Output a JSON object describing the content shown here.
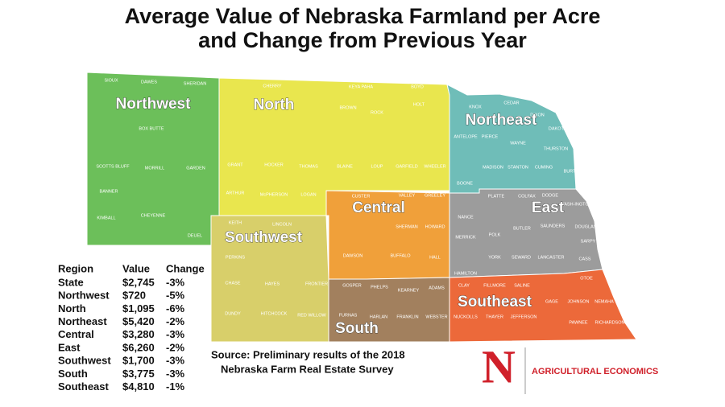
{
  "title": [
    "Average Value of Nebraska Farmland per Acre",
    "and Change from Previous Year"
  ],
  "map": {
    "regions": [
      {
        "name": "Northwest",
        "color": "#6cbf5a",
        "counties": [
          "SIOUX",
          "DAWES",
          "SHERIDAN",
          "BOX BUTTE",
          "SCOTTS BLUFF",
          "MORRILL",
          "GARDEN",
          "BANNER",
          "KIMBALL",
          "CHEYENNE",
          "DEUEL"
        ]
      },
      {
        "name": "North",
        "color": "#e9e64e",
        "counties": [
          "CHERRY",
          "KEYA PAHA",
          "BOYD",
          "BROWN",
          "ROCK",
          "HOLT",
          "GRANT",
          "HOCKER",
          "THOMAS",
          "BLAINE",
          "LOUP",
          "GARFIELD",
          "WHEELER",
          "ARTHUR",
          "McPHERSON",
          "LOGAN"
        ]
      },
      {
        "name": "Northeast",
        "color": "#6fbdb8",
        "counties": [
          "KNOX",
          "CEDAR",
          "DIXON",
          "DAKOTA",
          "ANTELOPE",
          "PIERCE",
          "WAYNE",
          "THURSTON",
          "MADISON",
          "STANTON",
          "CUMING",
          "BURT",
          "BOONE"
        ]
      },
      {
        "name": "Central",
        "color": "#f0a03a",
        "counties": [
          "CUSTER",
          "VALLEY",
          "GREELEY",
          "SHERMAN",
          "HOWARD",
          "DAWSON",
          "BUFFALO",
          "HALL"
        ]
      },
      {
        "name": "East",
        "color": "#9c9c9c",
        "counties": [
          "PLATTE",
          "COLFAX",
          "DODGE",
          "WASH-INGTON",
          "NANCE",
          "MERRICK",
          "POLK",
          "BUTLER",
          "SAUNDERS",
          "DOUGLAS",
          "SARPY",
          "HAMILTON",
          "YORK",
          "SEWARD",
          "LANCASTER",
          "CASS"
        ]
      },
      {
        "name": "Southwest",
        "color": "#d8cf6a",
        "counties": [
          "KEITH",
          "LINCOLN",
          "PERKINS",
          "CHASE",
          "HAYES",
          "FRONTIER",
          "DUNDY",
          "HITCHCOCK",
          "RED WILLOW"
        ]
      },
      {
        "name": "South",
        "color": "#a2805e",
        "counties": [
          "GOSPER",
          "PHELPS",
          "KEARNEY",
          "ADAMS",
          "FURNAS",
          "HARLAN",
          "FRANKLIN",
          "WEBSTER"
        ]
      },
      {
        "name": "Southeast",
        "color": "#ec693a",
        "counties": [
          "CLAY",
          "FILLMORE",
          "SALINE",
          "OTOE",
          "GAGE",
          "JOHNSON",
          "NEMAHA",
          "NUCKOLLS",
          "THAYER",
          "JEFFERSON",
          "PAWNEE",
          "RICHARDSON"
        ]
      }
    ]
  },
  "table": {
    "header": [
      "Region",
      "Value",
      "Change"
    ],
    "rows": [
      [
        "State",
        "$2,745",
        "-3%"
      ],
      [
        "Northwest",
        "$720",
        "-5%"
      ],
      [
        "North",
        "$1,095",
        "-6%"
      ],
      [
        "Northeast",
        "$5,420",
        "-2%"
      ],
      [
        "Central",
        "$3,280",
        "-3%"
      ],
      [
        "East",
        "$6,260",
        "-2%"
      ],
      [
        "Southwest",
        "$1,700",
        "-3%"
      ],
      [
        "South",
        "$3,775",
        "-3%"
      ],
      [
        "Southeast",
        "$4,810",
        "-1%"
      ]
    ]
  },
  "source": [
    "Source: Preliminary results of the 2018",
    "Nebraska Farm Real Estate Survey"
  ],
  "logo": {
    "letter": "N",
    "text": "AGRICULTURAL ECONOMICS"
  }
}
